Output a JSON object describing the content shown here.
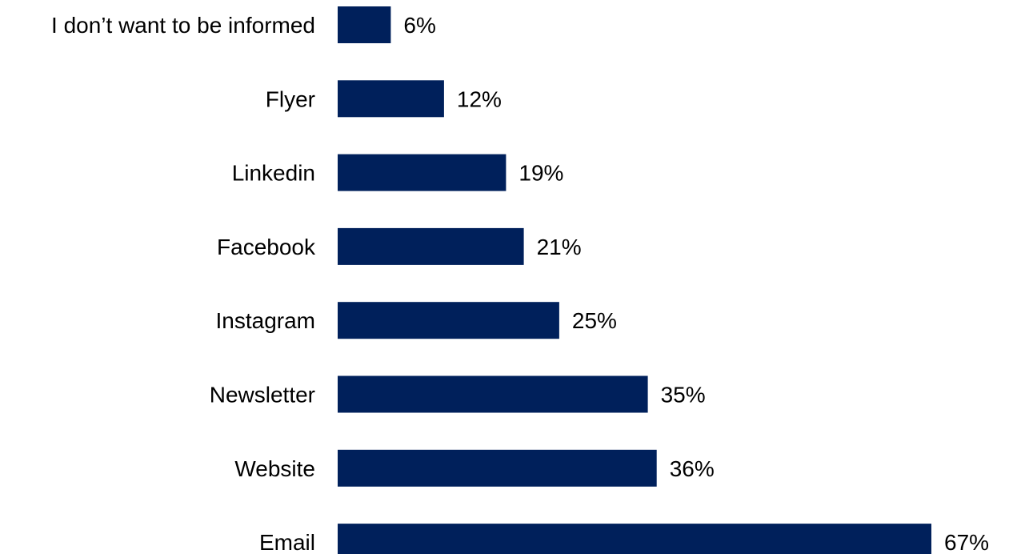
{
  "colors": {
    "bar": "#00205B",
    "background": "#FFFFFF",
    "text": "#000000"
  },
  "chart_data": {
    "type": "bar",
    "orientation": "horizontal",
    "categories": [
      "I don’t want to be informed",
      "Flyer",
      "Linkedin",
      "Facebook",
      "Instagram",
      "Newsletter",
      "Website",
      "Email"
    ],
    "values": [
      6,
      12,
      19,
      21,
      25,
      35,
      36,
      67
    ],
    "value_labels": [
      "6%",
      "12%",
      "19%",
      "21%",
      "25%",
      "35%",
      "36%",
      "67%"
    ],
    "title": "",
    "xlabel": "",
    "ylabel": "",
    "xlim": [
      0,
      67
    ],
    "grid": false,
    "legend": "none"
  }
}
